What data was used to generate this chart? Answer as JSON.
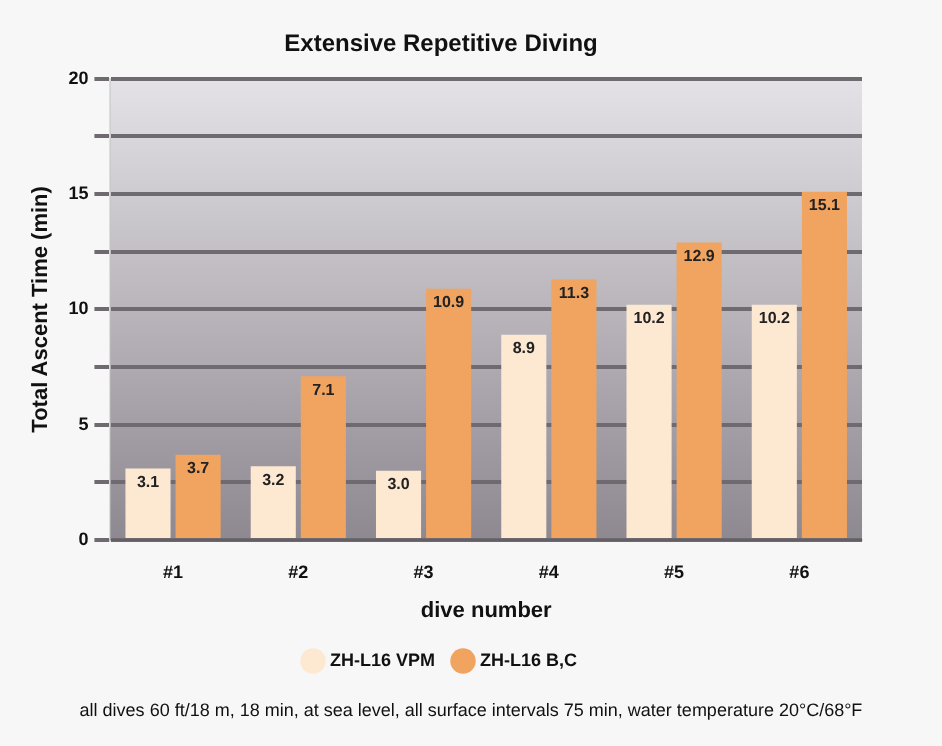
{
  "chart_data": {
    "type": "bar",
    "title": "Extensive Repetitive Diving",
    "xlabel": "dive number",
    "ylabel": "Total Ascent Time (min)",
    "categories": [
      "#1",
      "#2",
      "#3",
      "#4",
      "#5",
      "#6"
    ],
    "series": [
      {
        "name": "ZH-L16 VPM",
        "color": "#fde9d2",
        "values": [
          3.1,
          3.2,
          3.0,
          8.9,
          10.2,
          10.2
        ],
        "value_labels": [
          "3.1",
          "3.2",
          "3.0",
          "8.9",
          "10.2",
          "10.2"
        ]
      },
      {
        "name": "ZH-L16 B,C",
        "color": "#f0a460",
        "values": [
          3.7,
          7.1,
          10.9,
          11.3,
          12.9,
          15.1
        ],
        "value_labels": [
          "3.7",
          "7.1",
          "10.9",
          "11.3",
          "12.9",
          "15.1"
        ]
      }
    ],
    "ylim": [
      0,
      20
    ],
    "yticks": [
      0,
      {
        "value": 2.5,
        "label": null
      },
      5,
      {
        "value": 7.5,
        "label": null
      },
      10,
      {
        "value": 12.5,
        "label": null
      },
      15,
      {
        "value": 17.5,
        "label": null
      },
      20
    ],
    "grid": "y",
    "legend": "bottom",
    "annotations": [
      "all dives 60 ft/18 m, 18 min, at sea level, all surface intervals 75 min, water temperature 20°C/68°F"
    ]
  }
}
